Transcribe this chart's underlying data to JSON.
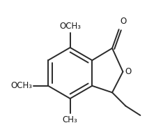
{
  "background_color": "#ffffff",
  "line_color": "#2a2a2a",
  "line_width": 1.4,
  "fig_width": 2.34,
  "fig_height": 1.86,
  "dpi": 100,
  "font_size": 8.5,
  "font_color": "#1a1a1a",
  "label_OCH3_top": "OCH₃",
  "label_OCH3_left": "OCH₃",
  "label_CH3": "CH₃",
  "label_O_ring": "O",
  "label_O_carbonyl": "O"
}
